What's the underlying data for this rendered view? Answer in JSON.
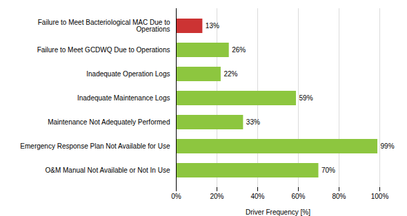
{
  "chart_data": {
    "type": "bar",
    "orientation": "horizontal",
    "categories": [
      "Failure to Meet Bacteriological MAC Due to\nOperations",
      "Failure to Meet GCDWQ Due to Operations",
      "Inadequate Operation Logs",
      "Inadequate Maintenance Logs",
      "Maintenance Not Adequately Performed",
      "Emergency Response Plan Not Available for Use",
      "O&M Manual Not Available or Not In Use"
    ],
    "values": [
      13,
      26,
      22,
      59,
      33,
      99,
      70
    ],
    "value_labels": [
      "13%",
      "26%",
      "22%",
      "59%",
      "33%",
      "99%",
      "70%"
    ],
    "data_labels": true,
    "colors": [
      "#cc3333",
      "#8dc63f",
      "#8dc63f",
      "#8dc63f",
      "#8dc63f",
      "#8dc63f",
      "#8dc63f"
    ],
    "xlabel": "Driver Frequency [%]",
    "xlim": [
      0,
      100
    ],
    "xticks": [
      {
        "value": 0,
        "label": "0%"
      },
      {
        "value": 20,
        "label": "20%"
      },
      {
        "value": 40,
        "label": "40%"
      },
      {
        "value": 60,
        "label": "60%"
      },
      {
        "value": 80,
        "label": "80%"
      },
      {
        "value": 100,
        "label": "100%"
      }
    ],
    "grid": true
  }
}
